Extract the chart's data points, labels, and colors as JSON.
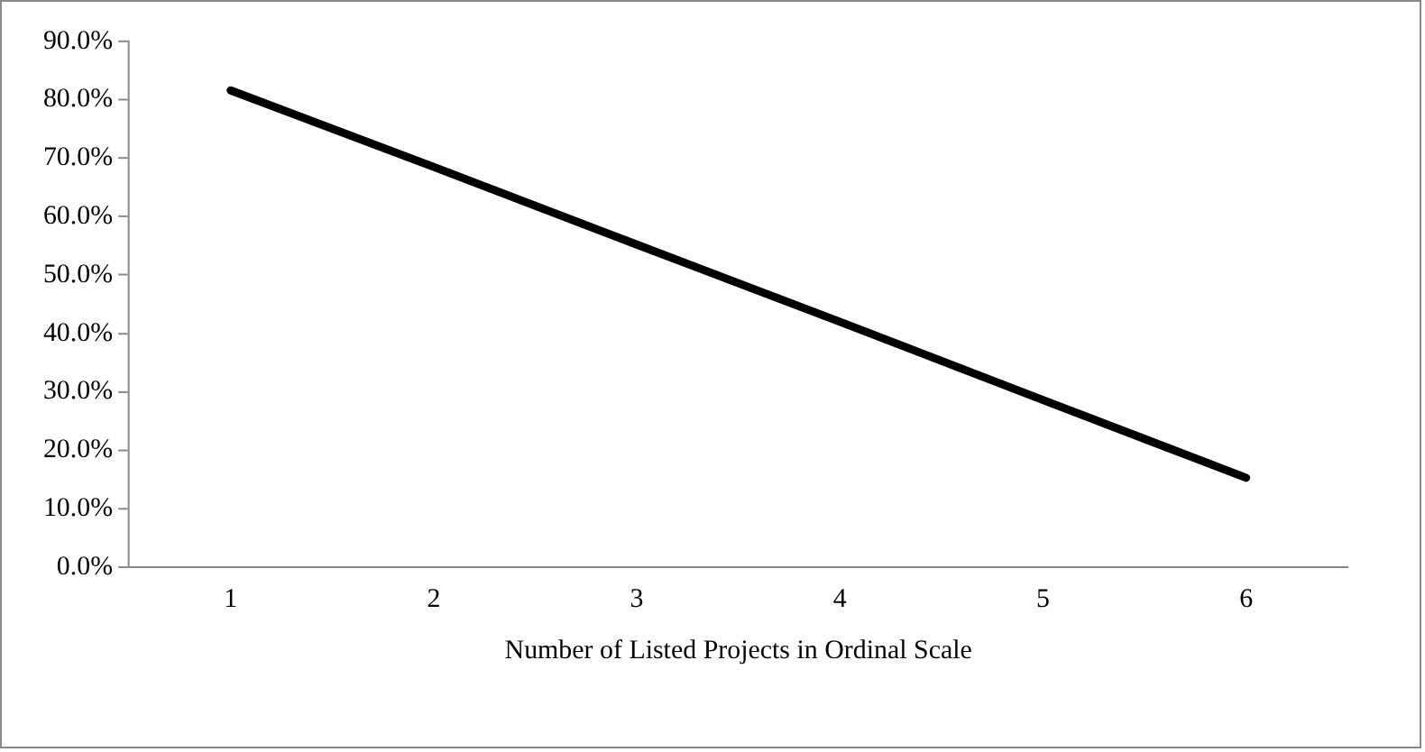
{
  "chart_data": {
    "type": "line",
    "xlabel": "Number of Listed Projects in Ordinal Scale",
    "categories": [
      "1",
      "2",
      "3",
      "4",
      "5",
      "6"
    ],
    "series": [
      {
        "color": "#000000",
        "values": [
          81.6,
          68.5,
          55.2,
          42.0,
          28.6,
          15.3
        ]
      }
    ],
    "ylim": [
      0,
      90
    ],
    "yticks": [
      {
        "value": 0,
        "label": "0.0%"
      },
      {
        "value": 10,
        "label": "10.0%"
      },
      {
        "value": 20,
        "label": "20.0%"
      },
      {
        "value": 30,
        "label": "30.0%"
      },
      {
        "value": 40,
        "label": "40.0%"
      },
      {
        "value": 50,
        "label": "50.0%"
      },
      {
        "value": 60,
        "label": "60.0%"
      },
      {
        "value": 70,
        "label": "70.0%"
      },
      {
        "value": 80,
        "label": "80.0%"
      },
      {
        "value": 90,
        "label": "90.0%"
      }
    ],
    "grid": false,
    "legend": false,
    "marker": "none",
    "line_style": "solid"
  }
}
